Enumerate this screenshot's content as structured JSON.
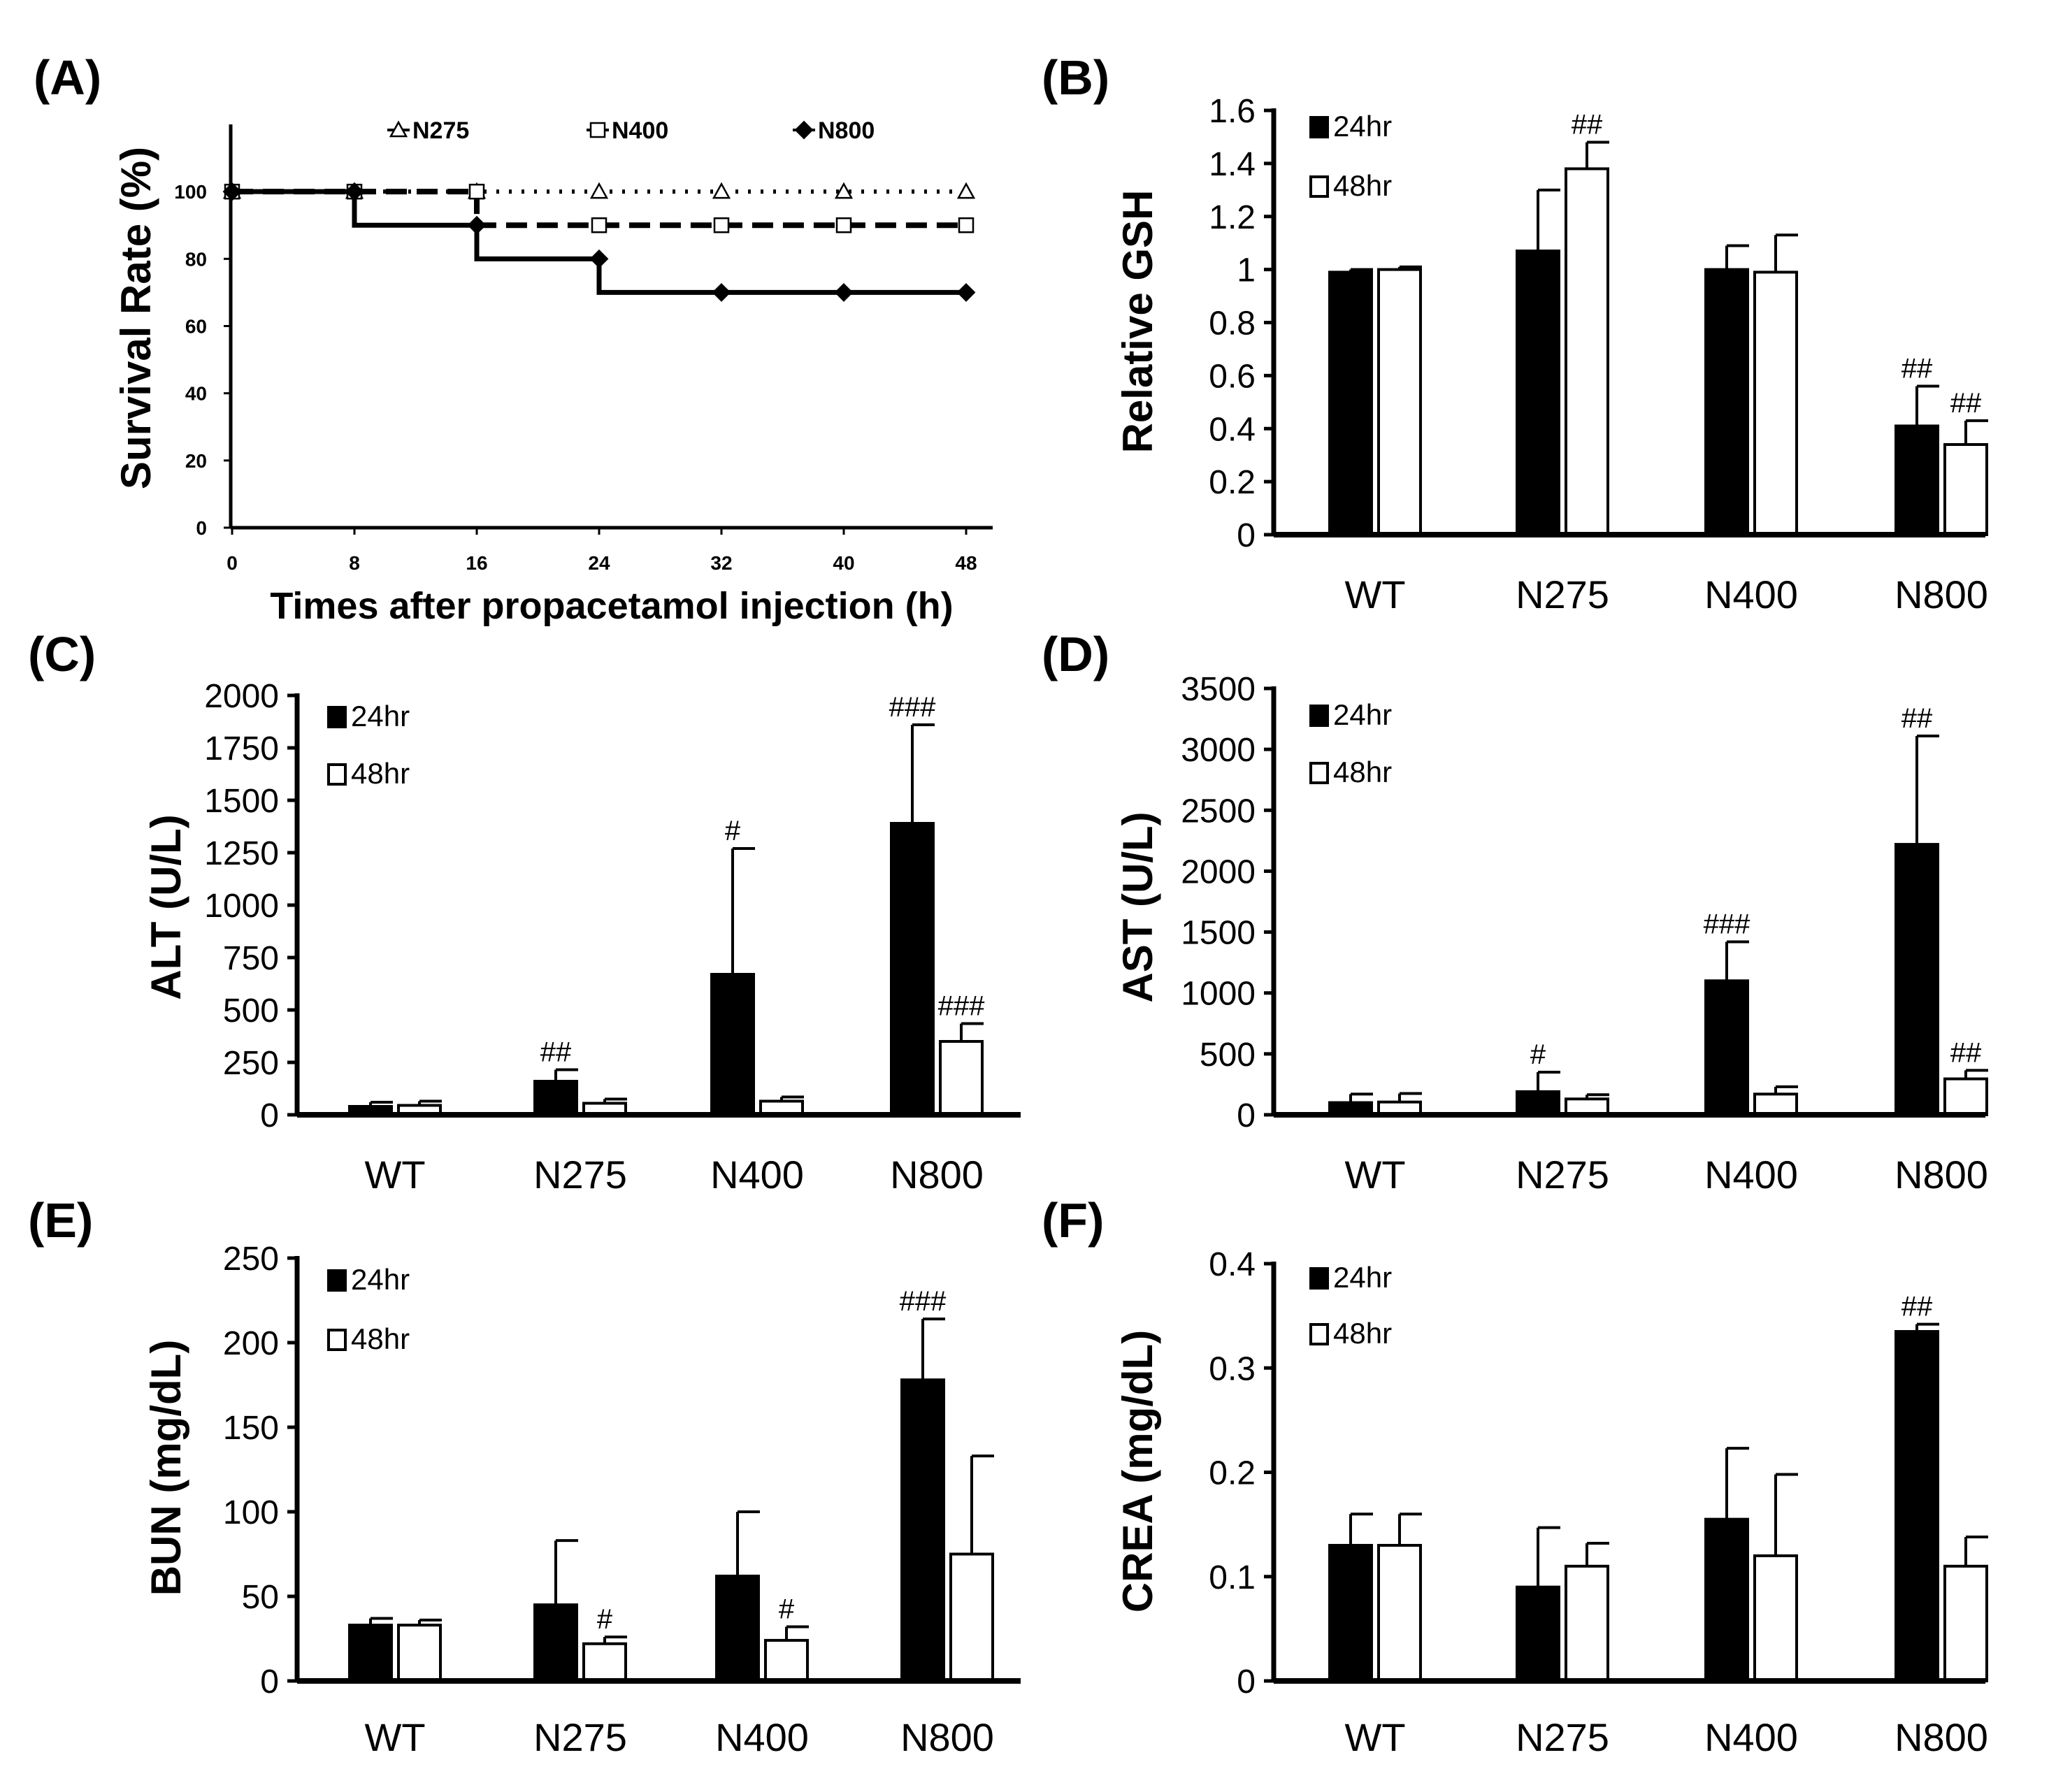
{
  "figure_labels": [
    "(A)",
    "(B)",
    "(C)",
    "(D)",
    "(E)",
    "(F)"
  ],
  "legend": {
    "h24": "24hr",
    "h48": "48hr"
  },
  "colors": {
    "h24": "#000000",
    "h48": "#ffffff",
    "axis": "#000000"
  },
  "chart_data": [
    {
      "id": "A",
      "type": "line",
      "title": "",
      "xlabel": "Times after propacetamol injection (h)",
      "ylabel": "Survival Rate (%)",
      "x": [
        0,
        8,
        16,
        24,
        32,
        40,
        48
      ],
      "xlim": [
        0,
        48
      ],
      "ylim": [
        0,
        120
      ],
      "yticks": [
        0,
        20,
        40,
        60,
        80,
        100
      ],
      "series": [
        {
          "name": "N275",
          "marker": "triangle",
          "style": "dotted",
          "values": [
            100,
            100,
            100,
            100,
            100,
            100,
            100
          ]
        },
        {
          "name": "N400",
          "marker": "square",
          "style": "dashed",
          "values": [
            100,
            100,
            100,
            90,
            90,
            90,
            90
          ]
        },
        {
          "name": "N800",
          "marker": "diamond",
          "style": "solid",
          "values": [
            100,
            100,
            90,
            80,
            70,
            70,
            70
          ]
        }
      ]
    },
    {
      "id": "B",
      "type": "bar",
      "ylabel": "Relative GSH",
      "categories": [
        "WT",
        "N275",
        "N400",
        "N800"
      ],
      "ylim": [
        0,
        1.6
      ],
      "yticks": [
        "0",
        "0.2",
        "0.4",
        "0.6",
        "0.8",
        "1",
        "1.2",
        "1.4",
        "1.6"
      ],
      "series": [
        {
          "name": "24hr",
          "values": [
            0.99,
            1.07,
            1.0,
            0.41
          ],
          "errors": [
            0.01,
            0.23,
            0.09,
            0.15
          ],
          "sig": [
            "",
            "",
            "",
            "##"
          ]
        },
        {
          "name": "48hr",
          "values": [
            1.0,
            1.38,
            0.99,
            0.34
          ],
          "errors": [
            0.01,
            0.1,
            0.14,
            0.09
          ],
          "sig": [
            "",
            "##",
            "",
            "##"
          ]
        }
      ]
    },
    {
      "id": "C",
      "type": "bar",
      "ylabel": "ALT (U/L)",
      "categories": [
        "WT",
        "N275",
        "N400",
        "N800"
      ],
      "ylim": [
        0,
        2000
      ],
      "yticks": [
        "0",
        "250",
        "500",
        "750",
        "1000",
        "1250",
        "1500",
        "1750",
        "2000"
      ],
      "series": [
        {
          "name": "24hr",
          "values": [
            40,
            160,
            670,
            1390
          ],
          "errors": [
            20,
            55,
            600,
            470
          ],
          "sig": [
            "",
            "##",
            "#",
            "###"
          ]
        },
        {
          "name": "48hr",
          "values": [
            45,
            55,
            65,
            350
          ],
          "errors": [
            20,
            20,
            20,
            85
          ],
          "sig": [
            "",
            "",
            "",
            "###"
          ]
        }
      ]
    },
    {
      "id": "D",
      "type": "bar",
      "ylabel": "AST (U/L)",
      "categories": [
        "WT",
        "N275",
        "N400",
        "N800"
      ],
      "ylim": [
        0,
        3500
      ],
      "yticks": [
        "0",
        "500",
        "1000",
        "1500",
        "2000",
        "2500",
        "3000",
        "3500"
      ],
      "series": [
        {
          "name": "24hr",
          "values": [
            100,
            190,
            1100,
            2220
          ],
          "errors": [
            70,
            160,
            320,
            890
          ],
          "sig": [
            "",
            "#",
            "###",
            "##"
          ]
        },
        {
          "name": "48hr",
          "values": [
            105,
            130,
            170,
            295
          ],
          "errors": [
            70,
            35,
            60,
            70
          ],
          "sig": [
            "",
            "",
            "",
            "##"
          ]
        }
      ]
    },
    {
      "id": "E",
      "type": "bar",
      "ylabel": "BUN (mg/dL)",
      "categories": [
        "WT",
        "N275",
        "N400",
        "N800"
      ],
      "ylim": [
        0,
        250
      ],
      "yticks": [
        "0",
        "50",
        "100",
        "150",
        "200",
        "250"
      ],
      "series": [
        {
          "name": "24hr",
          "values": [
            33,
            45,
            62,
            178
          ],
          "errors": [
            4,
            38,
            38,
            36
          ],
          "sig": [
            "",
            "",
            "",
            "###"
          ]
        },
        {
          "name": "48hr",
          "values": [
            33,
            22,
            24,
            75
          ],
          "errors": [
            3,
            4,
            8,
            58
          ],
          "sig": [
            "",
            "#",
            "#",
            ""
          ]
        }
      ]
    },
    {
      "id": "F",
      "type": "bar",
      "ylabel": "CREA (mg/dL)",
      "categories": [
        "WT",
        "N275",
        "N400",
        "N800"
      ],
      "ylim": [
        0,
        0.4
      ],
      "yticks": [
        "0",
        "0.1",
        "0.2",
        "0.3",
        "0.4"
      ],
      "series": [
        {
          "name": "24hr",
          "values": [
            0.13,
            0.09,
            0.155,
            0.335
          ],
          "errors": [
            0.03,
            0.057,
            0.068,
            0.007
          ],
          "sig": [
            "",
            "",
            "",
            "##"
          ]
        },
        {
          "name": "48hr",
          "values": [
            0.13,
            0.11,
            0.12,
            0.11
          ],
          "errors": [
            0.03,
            0.022,
            0.078,
            0.028
          ],
          "sig": [
            "",
            "",
            "",
            ""
          ]
        }
      ]
    }
  ]
}
